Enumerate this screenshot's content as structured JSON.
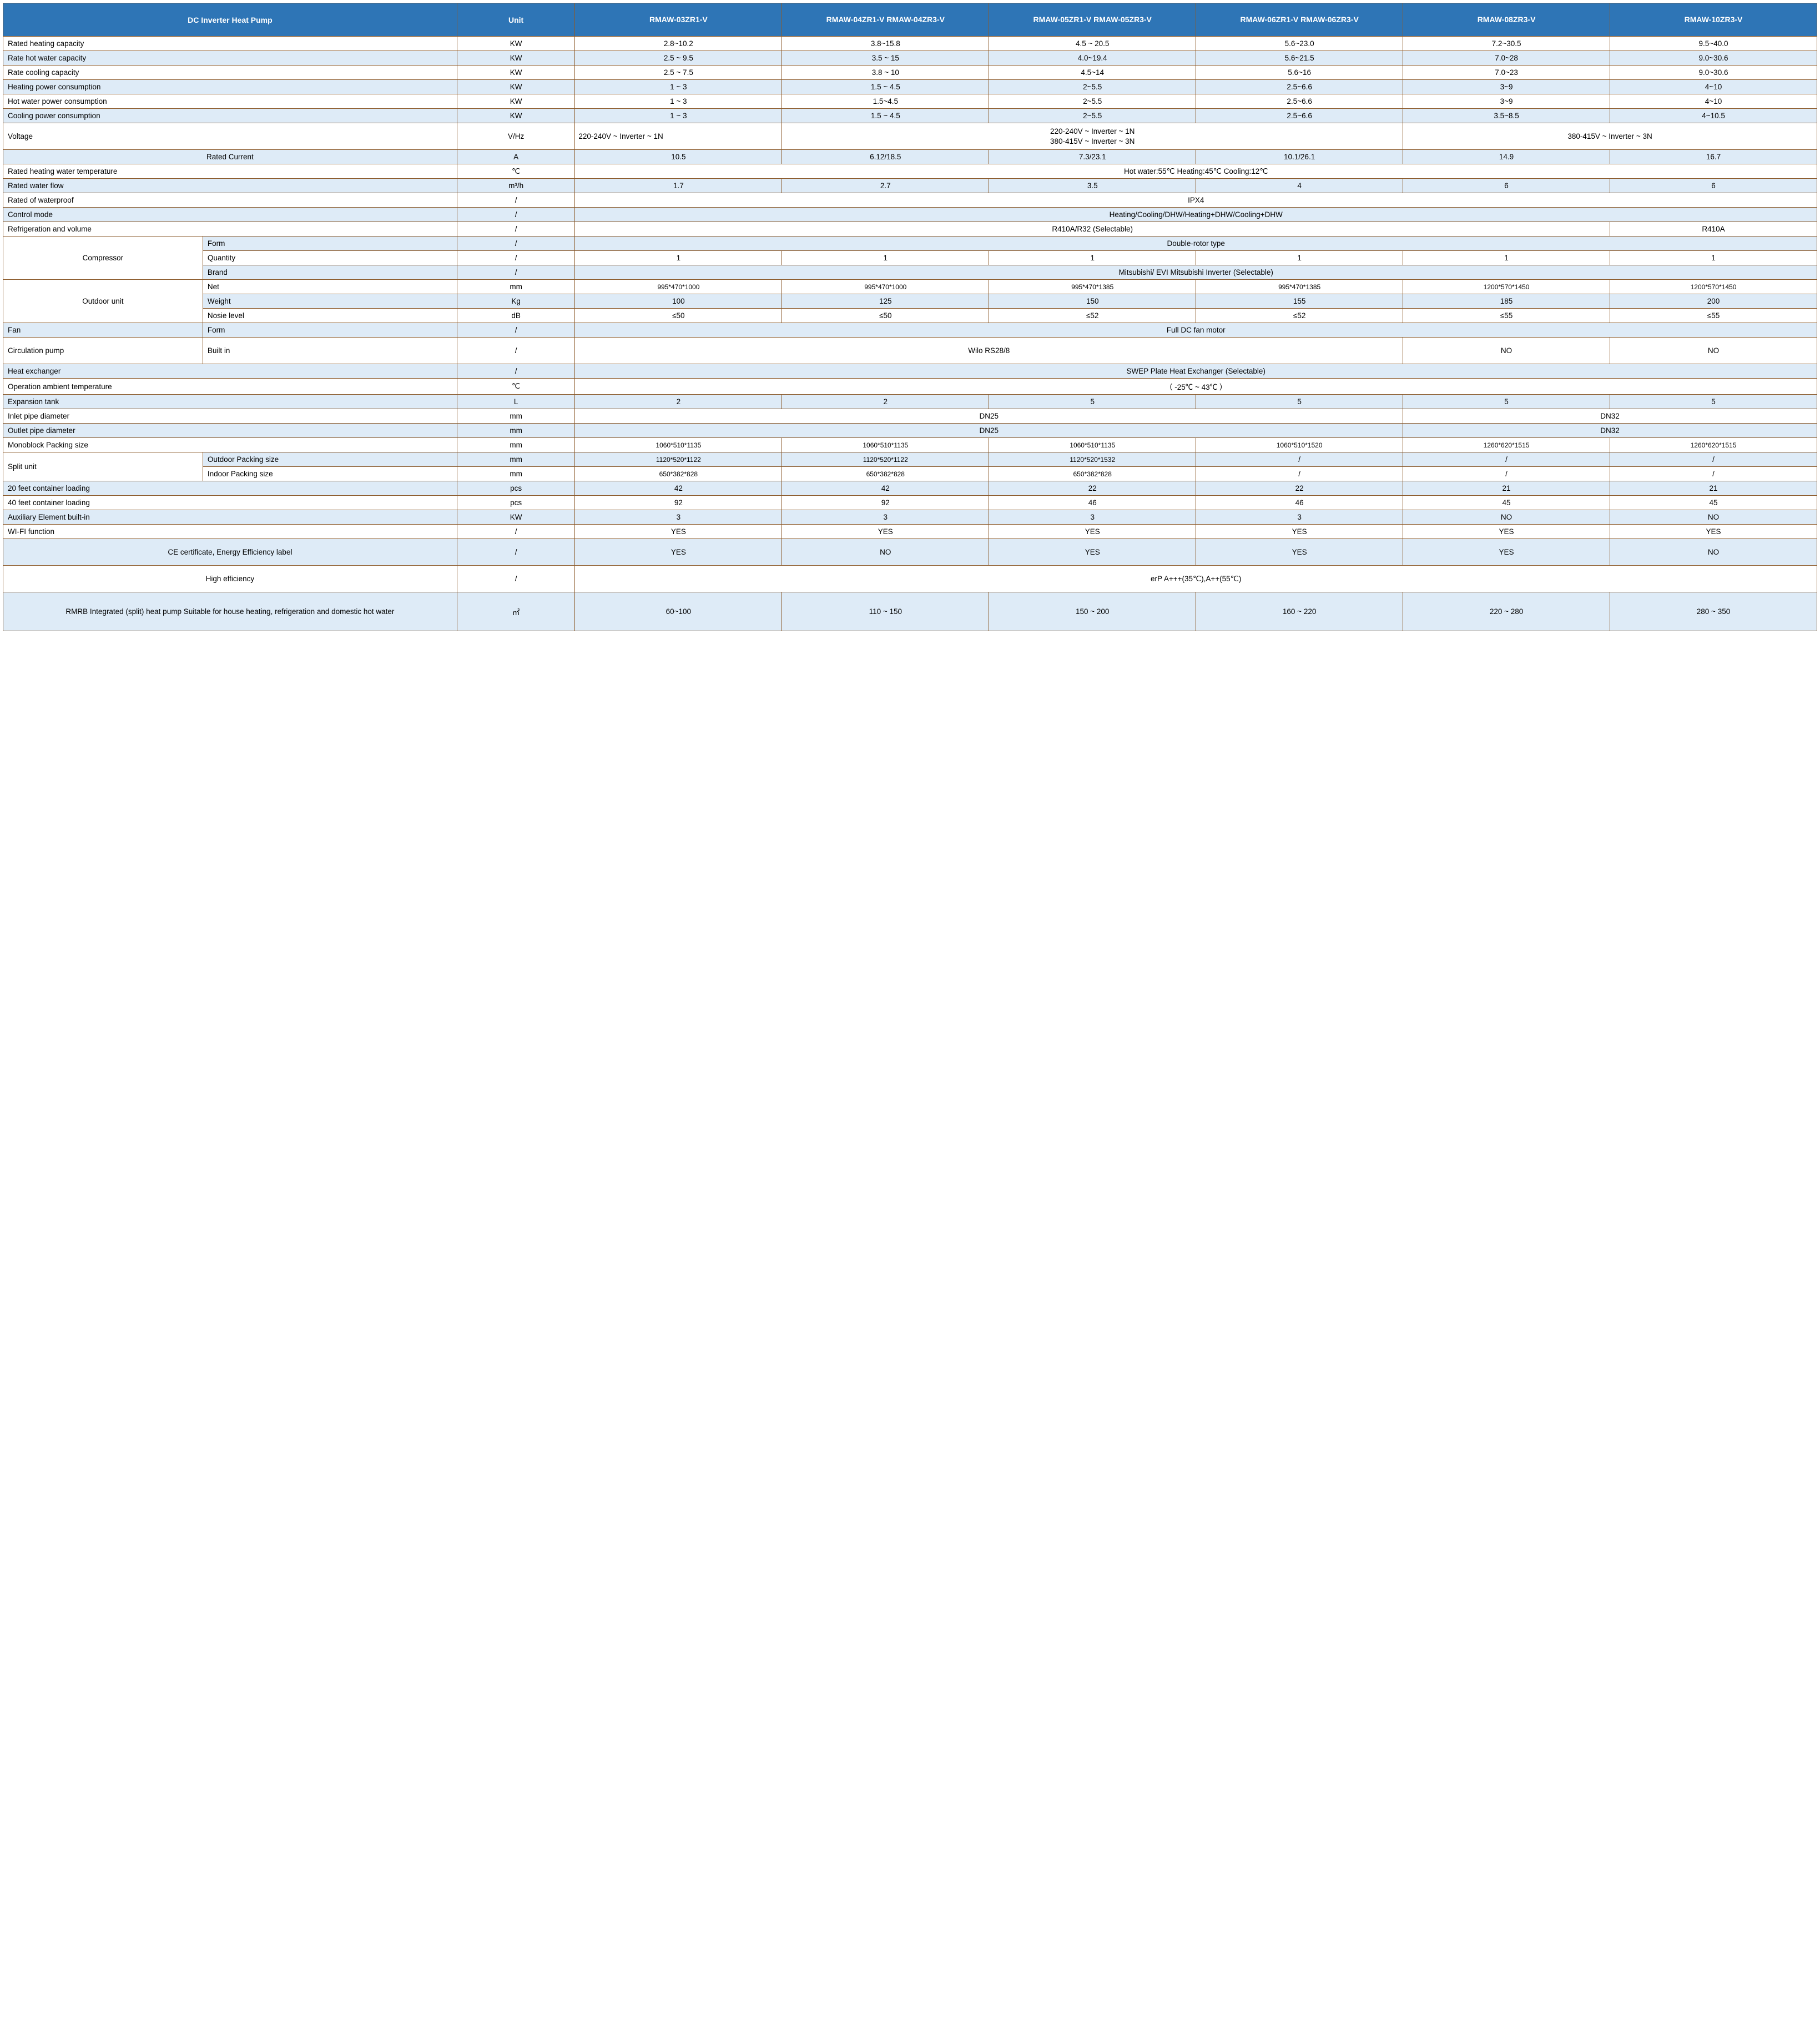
{
  "colors": {
    "header_bg": "#2e75b6",
    "header_fg": "#ffffff",
    "row_alt_bg": "#deebf7",
    "border": "#8b5a2b"
  },
  "header": {
    "title": "DC Inverter Heat Pump",
    "unit": "Unit",
    "models": [
      "RMAW-03ZR1-V",
      "RMAW-04ZR1-V RMAW-04ZR3-V",
      "RMAW-05ZR1-V RMAW-05ZR3-V",
      "RMAW-06ZR1-V RMAW-06ZR3-V",
      "RMAW-08ZR3-V",
      "RMAW-10ZR3-V"
    ]
  },
  "rows": {
    "r1": {
      "label": "Rated heating capacity",
      "unit": "KW",
      "v": [
        "2.8~10.2",
        "3.8~15.8",
        "4.5 ~ 20.5",
        "5.6~23.0",
        "7.2~30.5",
        "9.5~40.0"
      ]
    },
    "r2": {
      "label": "Rate hot water capacity",
      "unit": "KW",
      "v": [
        "2.5 ~ 9.5",
        "3.5 ~ 15",
        "4.0~19.4",
        "5.6~21.5",
        "7.0~28",
        "9.0~30.6"
      ]
    },
    "r3": {
      "label": "Rate cooling capacity",
      "unit": "KW",
      "v": [
        "2.5 ~ 7.5",
        "3.8 ~ 10",
        "4.5~14",
        "5.6~16",
        "7.0~23",
        "9.0~30.6"
      ]
    },
    "r4": {
      "label": "Heating power consumption",
      "unit": "KW",
      "v": [
        "1 ~ 3",
        "1.5 ~ 4.5",
        "2~5.5",
        "2.5~6.6",
        "3~9",
        "4~10"
      ]
    },
    "r5": {
      "label": "Hot water power consumption",
      "unit": "KW",
      "v": [
        "1 ~ 3",
        "1.5~4.5",
        "2~5.5",
        "2.5~6.6",
        "3~9",
        "4~10"
      ]
    },
    "r6": {
      "label": "Cooling power consumption",
      "unit": "KW",
      "v": [
        "1 ~ 3",
        "1.5 ~ 4.5",
        "2~5.5",
        "2.5~6.6",
        "3.5~8.5",
        "4~10.5"
      ]
    },
    "r7": {
      "label": "Voltage",
      "unit": "V/Hz",
      "v1": "220-240V ~ Inverter ~ 1N",
      "v2": "220-240V ~ Inverter ~ 1N\n380-415V ~ Inverter ~ 3N",
      "v3": "380-415V ~ Inverter ~ 3N"
    },
    "r8": {
      "label": "Rated Current",
      "unit": "A",
      "v": [
        "10.5",
        "6.12/18.5",
        "7.3/23.1",
        "10.1/26.1",
        "14.9",
        "16.7"
      ]
    },
    "r9": {
      "label": "Rated heating water temperature",
      "unit": "℃",
      "span": "Hot water:55℃ Heating:45℃ Cooling:12℃"
    },
    "r10": {
      "label": "Rated water flow",
      "unit": "m³/h",
      "v": [
        "1.7",
        "2.7",
        "3.5",
        "4",
        "6",
        "6"
      ]
    },
    "r11": {
      "label": "Rated of waterproof",
      "unit": "/",
      "span": "IPX4"
    },
    "r12": {
      "label": "Control mode",
      "unit": "/",
      "span": "Heating/Cooling/DHW/Heating+DHW/Cooling+DHW"
    },
    "r13": {
      "label": "Refrigeration and volume",
      "unit": "/",
      "v1": "R410A/R32 (Selectable)",
      "v2": "R410A"
    },
    "comp": {
      "label": "Compressor",
      "a": {
        "label": "Form",
        "unit": "/",
        "span": "Double-rotor type"
      },
      "b": {
        "label": "Quantity",
        "unit": "/",
        "v": [
          "1",
          "1",
          "1",
          "1",
          "1",
          "1"
        ]
      },
      "c": {
        "label": "Brand",
        "unit": "/",
        "span": "Mitsubishi/ EVI Mitsubishi  Inverter (Selectable)"
      }
    },
    "out": {
      "label": "Outdoor unit",
      "a": {
        "label": "Net",
        "unit": "mm",
        "v": [
          "995*470*1000",
          "995*470*1000",
          "995*470*1385",
          "995*470*1385",
          "1200*570*1450",
          "1200*570*1450"
        ]
      },
      "b": {
        "label": "Weight",
        "unit": "Kg",
        "v": [
          "100",
          "125",
          "150",
          "155",
          "185",
          "200"
        ]
      },
      "c": {
        "label": "Nosie level",
        "unit": "dB",
        "v": [
          "≤50",
          "≤50",
          "≤52",
          "≤52",
          "≤55",
          "≤55"
        ]
      }
    },
    "fan": {
      "label": "Fan",
      "sub": "Form",
      "unit": "/",
      "span": "Full DC fan motor"
    },
    "pump": {
      "label": "Circulation pump",
      "sub": "Built in",
      "unit": "/",
      "v1": "Wilo RS28/8",
      "v2": "NO",
      "v3": "NO"
    },
    "hex": {
      "label": "Heat exchanger",
      "unit": "/",
      "span": "SWEP Plate Heat Exchanger (Selectable)"
    },
    "oat": {
      "label": "Operation ambient temperature",
      "unit": "℃",
      "span": "（ -25℃ ~ 43℃ ）"
    },
    "exp": {
      "label": "Expansion tank",
      "unit": "L",
      "v": [
        "2",
        "2",
        "5",
        "5",
        "5",
        "5"
      ]
    },
    "inp": {
      "label": "Inlet pipe diameter",
      "unit": "mm",
      "v1": "DN25",
      "v2": "DN32"
    },
    "outp": {
      "label": "Outlet pipe diameter",
      "unit": "mm",
      "v1": "DN25",
      "v2": "DN32"
    },
    "mono": {
      "label": "Monoblock Packing size",
      "unit": "mm",
      "v": [
        "1060*510*1135",
        "1060*510*1135",
        "1060*510*1135",
        "1060*510*1520",
        "1260*620*1515",
        "1260*620*1515"
      ]
    },
    "split": {
      "label": "Split unit",
      "a": {
        "label": "Outdoor Packing size",
        "unit": "mm",
        "v": [
          "1120*520*1122",
          "1120*520*1122",
          "1120*520*1532",
          "/",
          "/",
          "/"
        ]
      },
      "b": {
        "label": "Indoor Packing size",
        "unit": "mm",
        "v": [
          "650*382*828",
          "650*382*828",
          "650*382*828",
          "/",
          "/",
          "/"
        ]
      }
    },
    "c20": {
      "label": "20 feet container loading",
      "unit": "pcs",
      "v": [
        "42",
        "42",
        "22",
        "22",
        "21",
        "21"
      ]
    },
    "c40": {
      "label": "40 feet container loading",
      "unit": "pcs",
      "v": [
        "92",
        "92",
        "46",
        "46",
        "45",
        "45"
      ]
    },
    "aux": {
      "label": "Auxiliary Element built-in",
      "unit": "KW",
      "v": [
        "3",
        "3",
        "3",
        "3",
        "NO",
        "NO"
      ]
    },
    "wifi": {
      "label": "WI-FI function",
      "unit": "/",
      "v": [
        "YES",
        "YES",
        "YES",
        "YES",
        "YES",
        "YES"
      ]
    },
    "ce": {
      "label": "CE certificate, Energy Efficiency label",
      "unit": "/",
      "v": [
        "YES",
        "NO",
        "YES",
        "YES",
        "YES",
        "NO"
      ]
    },
    "eff": {
      "label": "High efficiency",
      "unit": "/",
      "span": "erP A+++(35℃),A++(55℃)"
    },
    "foot": {
      "label": "RMRB Integrated (split) heat pump Suitable for house heating, refrigeration and domestic hot water",
      "unit": "㎡",
      "v": [
        "60~100",
        "110 ~ 150",
        "150 ~ 200",
        "160 ~ 220",
        "220 ~ 280",
        "280 ~ 350"
      ]
    }
  }
}
